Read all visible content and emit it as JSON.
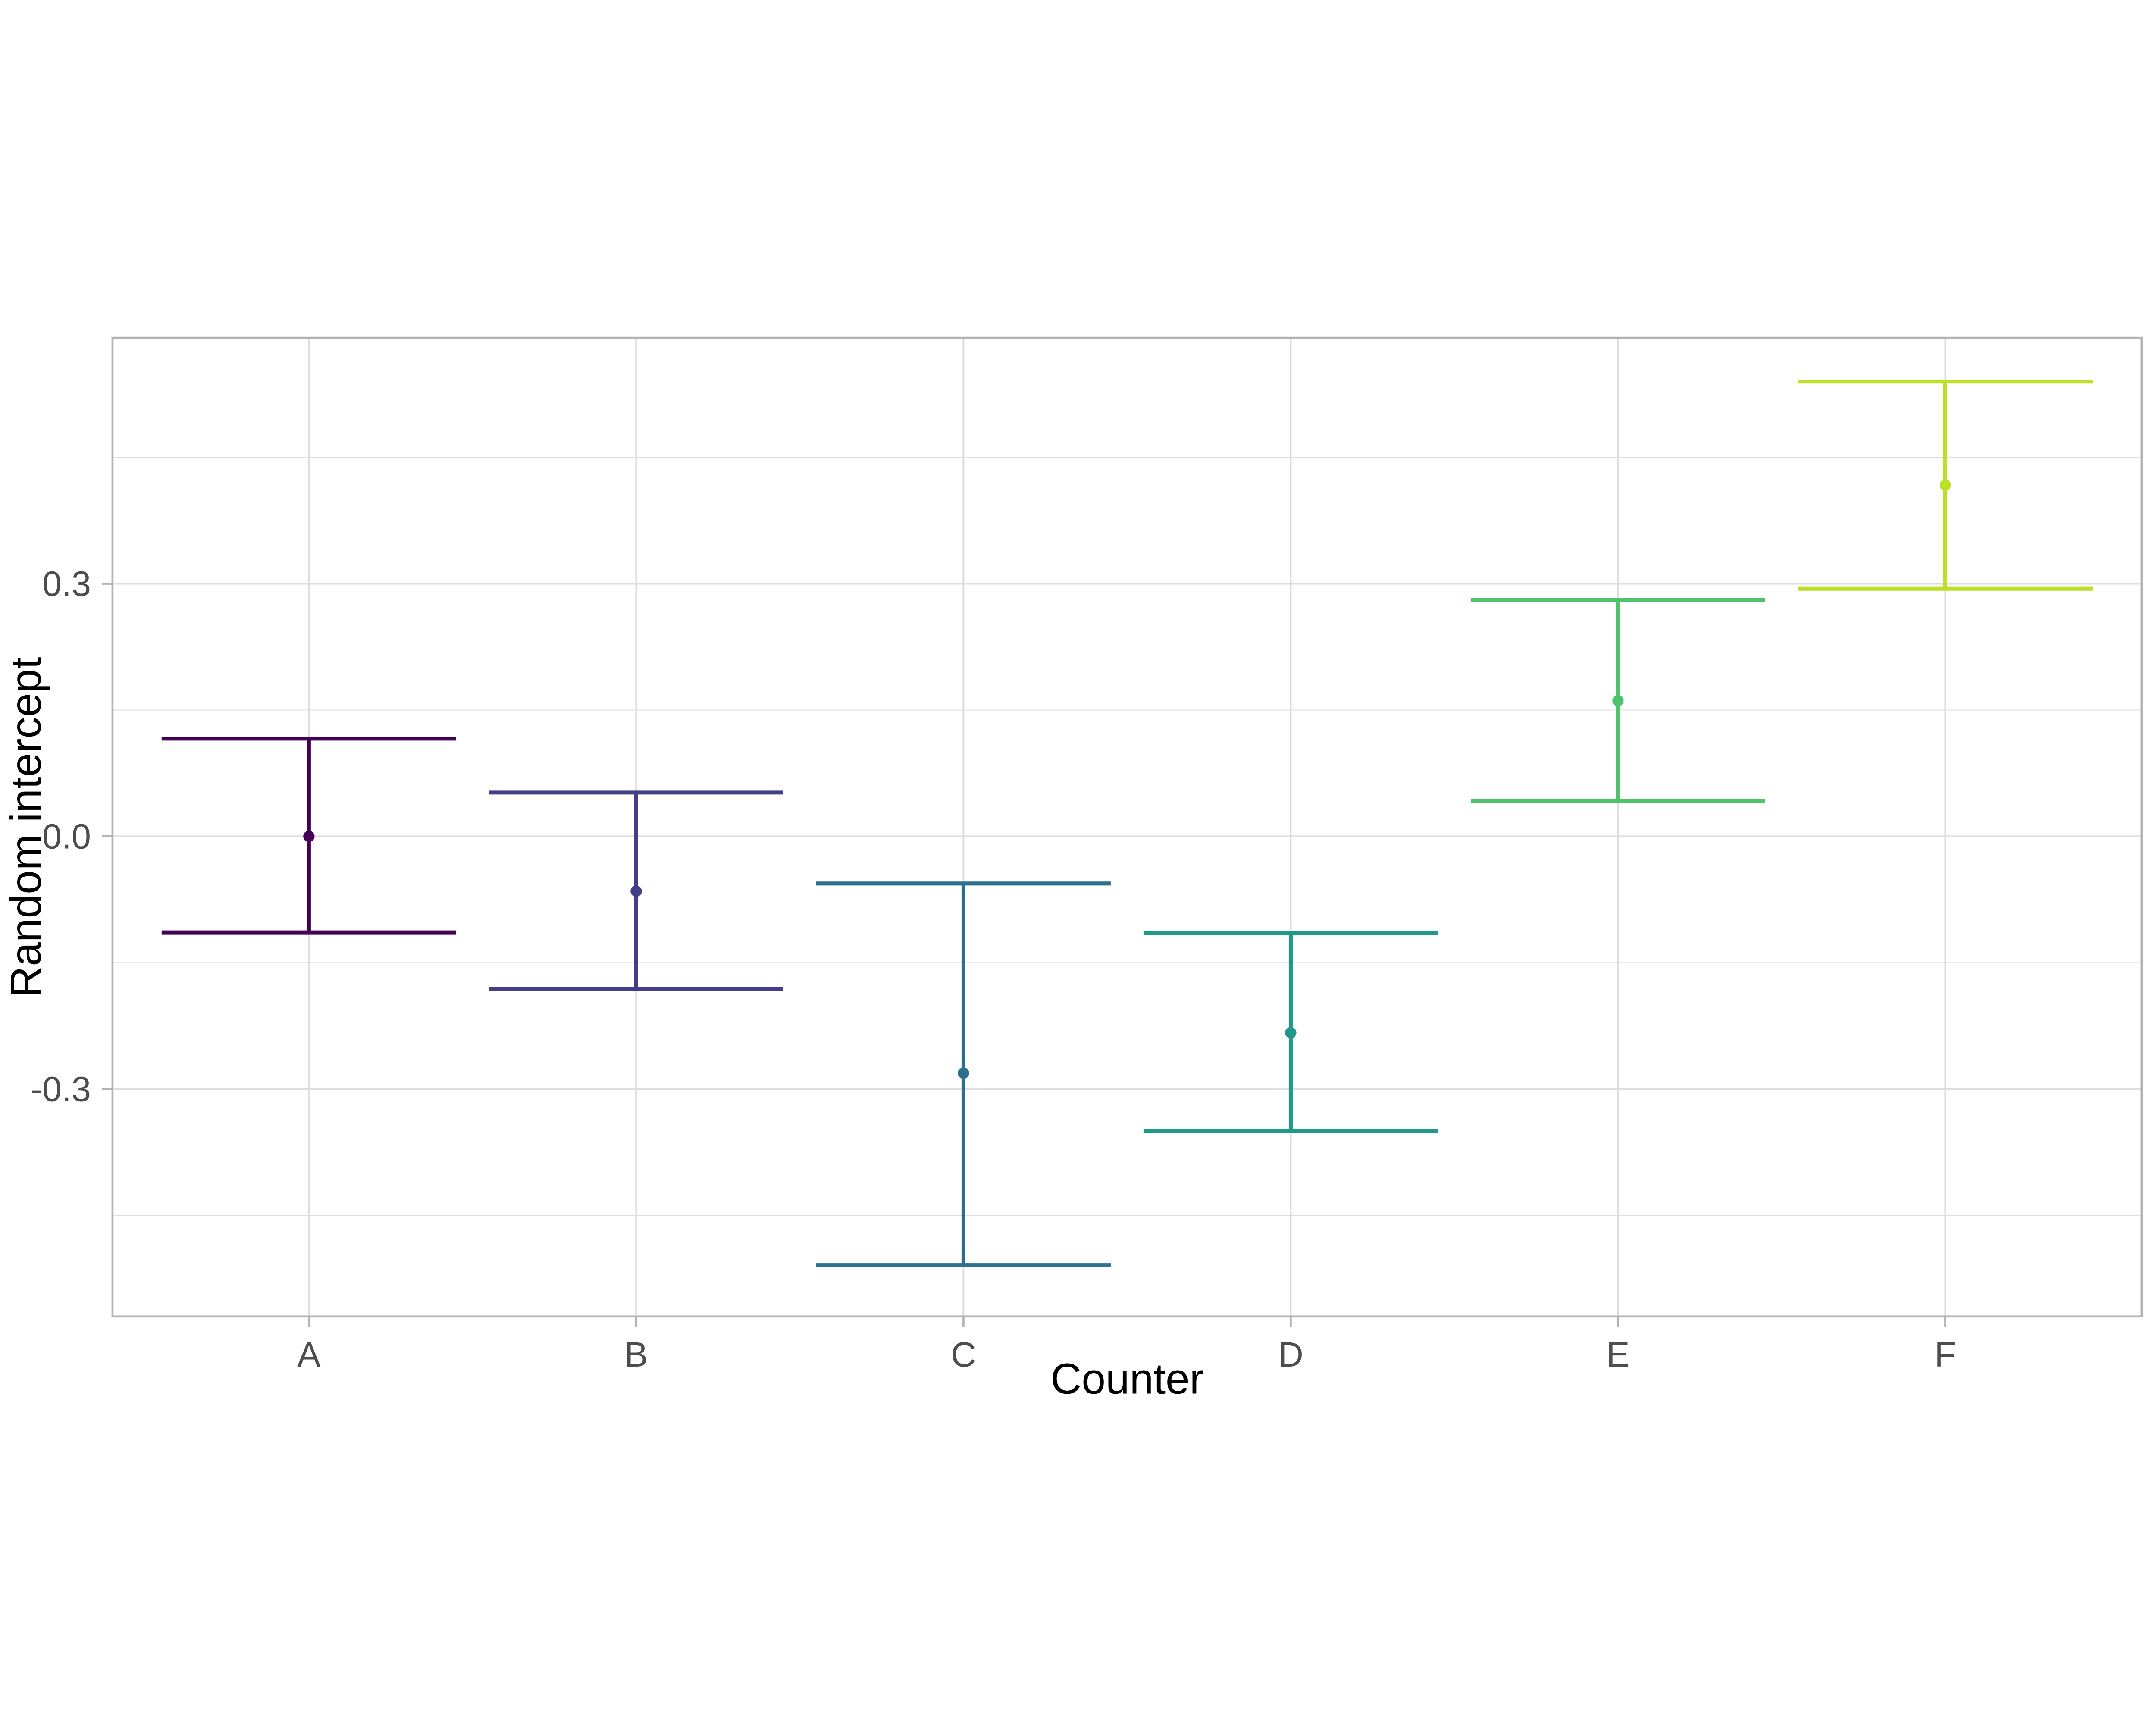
{
  "chart_data": {
    "type": "errorbar",
    "title": "",
    "xlabel": "Counter",
    "ylabel": "Random intercept",
    "categories": [
      "A",
      "B",
      "C",
      "D",
      "E",
      "F"
    ],
    "points": [
      {
        "label": "A",
        "mean": 0.0,
        "lower": -0.114,
        "upper": 0.116,
        "color": "#440154"
      },
      {
        "label": "B",
        "mean": -0.065,
        "lower": -0.181,
        "upper": 0.052,
        "color": "#433E85"
      },
      {
        "label": "C",
        "mean": -0.281,
        "lower": -0.509,
        "upper": -0.056,
        "color": "#2D708E"
      },
      {
        "label": "D",
        "mean": -0.233,
        "lower": -0.35,
        "upper": -0.115,
        "color": "#21998A"
      },
      {
        "label": "E",
        "mean": 0.161,
        "lower": 0.042,
        "upper": 0.281,
        "color": "#4EC36B"
      },
      {
        "label": "F",
        "mean": 0.417,
        "lower": 0.294,
        "upper": 0.54,
        "color": "#BCDF27"
      }
    ],
    "y_major_ticks": [
      {
        "value": 0.3,
        "label": "0.3"
      },
      {
        "value": 0.0,
        "label": "0.0"
      },
      {
        "value": -0.3,
        "label": "-0.3"
      }
    ],
    "y_minor_ticks": [
      0.45,
      0.15,
      -0.15,
      -0.45
    ],
    "ylim": [
      -0.57,
      0.592
    ],
    "x_padding_categories": 0.6,
    "errorbar_width_ratio": 0.9,
    "grid": "horizontal major+minor, vertical major at categories",
    "legend_position": "none",
    "theme": {
      "panel_background": "#FFFFFF",
      "panel_border_color": "#B3B3B3",
      "grid_color": "#DEDEDE",
      "tick_mark_color": "#B3B3B3",
      "tick_label_color": "#4D4D4D",
      "axis_title_color": "#000000"
    }
  }
}
